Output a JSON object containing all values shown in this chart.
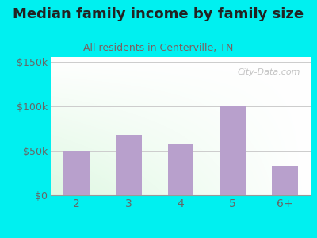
{
  "categories": [
    "2",
    "3",
    "4",
    "5",
    "6+"
  ],
  "values": [
    50000,
    68000,
    57000,
    100000,
    33000
  ],
  "bar_color": "#b8a0cc",
  "title": "Median family income by family size",
  "subtitle": "All residents in Centerville, TN",
  "title_color": "#222222",
  "subtitle_color": "#7a6060",
  "outer_bg": "#00f0f0",
  "plot_bg_topleft": "#d8f0d8",
  "plot_bg_topright": "#f0f8f0",
  "plot_bg_bottom": "#ffffff",
  "yticks": [
    0,
    50000,
    100000,
    150000
  ],
  "ytick_labels": [
    "$0",
    "$50k",
    "$100k",
    "$150k"
  ],
  "ylim": [
    0,
    155000
  ],
  "watermark": "City-Data.com",
  "tick_color": "#666666",
  "grid_color": "#cccccc",
  "title_fontsize": 13,
  "subtitle_fontsize": 9
}
